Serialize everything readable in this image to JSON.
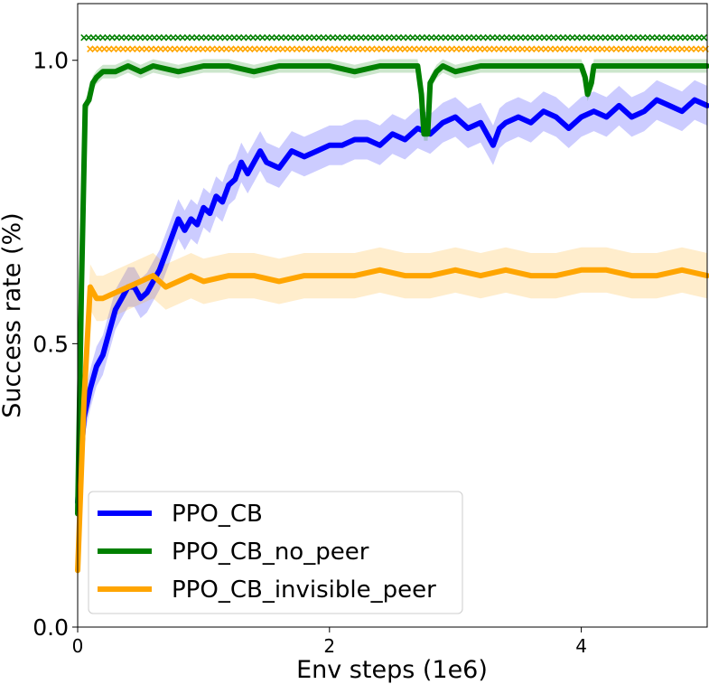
{
  "chart_data": {
    "type": "line",
    "title": "",
    "xlabel": "Env steps (1e6)",
    "ylabel": "Success rate (%)",
    "xlim": [
      0,
      5
    ],
    "ylim": [
      0,
      1.1
    ],
    "xticks": [
      0,
      2,
      4
    ],
    "xtick_labels": [
      "0",
      "2",
      "4"
    ],
    "yticks": [
      0.0,
      0.5,
      1.0
    ],
    "ytick_labels": [
      "0.0",
      "0.5",
      "1.0"
    ],
    "grid": false,
    "legend_position": "lower-left",
    "series": [
      {
        "name": "PPO_CB",
        "color": "#0000ff",
        "band_color": "#0000ff",
        "x": [
          0.0,
          0.05,
          0.1,
          0.15,
          0.2,
          0.25,
          0.3,
          0.35,
          0.4,
          0.45,
          0.5,
          0.55,
          0.6,
          0.65,
          0.7,
          0.75,
          0.8,
          0.85,
          0.9,
          0.95,
          1.0,
          1.05,
          1.1,
          1.15,
          1.2,
          1.25,
          1.3,
          1.35,
          1.4,
          1.45,
          1.5,
          1.6,
          1.7,
          1.8,
          1.9,
          2.0,
          2.1,
          2.2,
          2.3,
          2.4,
          2.5,
          2.6,
          2.7,
          2.8,
          2.9,
          3.0,
          3.1,
          3.2,
          3.3,
          3.35,
          3.4,
          3.5,
          3.6,
          3.7,
          3.8,
          3.9,
          4.0,
          4.1,
          4.2,
          4.3,
          4.4,
          4.5,
          4.6,
          4.7,
          4.8,
          4.9,
          5.0
        ],
        "values": [
          0.22,
          0.37,
          0.42,
          0.46,
          0.48,
          0.52,
          0.56,
          0.58,
          0.6,
          0.6,
          0.58,
          0.59,
          0.61,
          0.63,
          0.66,
          0.69,
          0.72,
          0.7,
          0.72,
          0.71,
          0.74,
          0.73,
          0.76,
          0.75,
          0.78,
          0.79,
          0.82,
          0.8,
          0.82,
          0.84,
          0.82,
          0.81,
          0.84,
          0.83,
          0.84,
          0.85,
          0.85,
          0.86,
          0.86,
          0.85,
          0.87,
          0.86,
          0.88,
          0.87,
          0.89,
          0.9,
          0.88,
          0.89,
          0.85,
          0.88,
          0.89,
          0.9,
          0.89,
          0.91,
          0.9,
          0.88,
          0.9,
          0.91,
          0.9,
          0.92,
          0.9,
          0.91,
          0.93,
          0.92,
          0.91,
          0.93,
          0.92
        ],
        "spread": 0.035
      },
      {
        "name": "PPO_CB_no_peer",
        "color": "#008000",
        "band_color": "#008000",
        "x": [
          0.0,
          0.03,
          0.06,
          0.09,
          0.12,
          0.15,
          0.2,
          0.3,
          0.4,
          0.5,
          0.6,
          0.8,
          1.0,
          1.2,
          1.4,
          1.6,
          1.8,
          2.0,
          2.2,
          2.4,
          2.6,
          2.7,
          2.73,
          2.75,
          2.78,
          2.8,
          2.85,
          2.9,
          3.0,
          3.2,
          3.4,
          3.6,
          3.8,
          4.0,
          4.03,
          4.05,
          4.08,
          4.1,
          4.3,
          4.5,
          4.7,
          4.9,
          5.0
        ],
        "values": [
          0.2,
          0.6,
          0.92,
          0.93,
          0.96,
          0.97,
          0.98,
          0.98,
          0.99,
          0.98,
          0.99,
          0.98,
          0.99,
          0.99,
          0.98,
          0.99,
          0.99,
          0.99,
          0.98,
          0.99,
          0.99,
          0.99,
          0.94,
          0.87,
          0.87,
          0.96,
          0.98,
          0.99,
          0.98,
          0.99,
          0.99,
          0.99,
          0.99,
          0.99,
          0.97,
          0.94,
          0.96,
          0.99,
          0.99,
          0.99,
          0.99,
          0.99,
          0.99
        ],
        "spread": 0.012
      },
      {
        "name": "PPO_CB_invisible_peer",
        "color": "#ffa500",
        "band_color": "#ffa500",
        "x": [
          0.0,
          0.05,
          0.1,
          0.15,
          0.2,
          0.3,
          0.4,
          0.5,
          0.6,
          0.7,
          0.8,
          0.9,
          1.0,
          1.2,
          1.4,
          1.6,
          1.8,
          2.0,
          2.2,
          2.4,
          2.6,
          2.8,
          3.0,
          3.2,
          3.4,
          3.6,
          3.8,
          4.0,
          4.2,
          4.4,
          4.6,
          4.8,
          5.0
        ],
        "values": [
          0.1,
          0.4,
          0.6,
          0.58,
          0.58,
          0.59,
          0.6,
          0.61,
          0.62,
          0.6,
          0.61,
          0.62,
          0.61,
          0.62,
          0.62,
          0.61,
          0.62,
          0.62,
          0.62,
          0.63,
          0.62,
          0.62,
          0.63,
          0.62,
          0.63,
          0.62,
          0.62,
          0.63,
          0.63,
          0.62,
          0.62,
          0.63,
          0.62
        ],
        "spread": 0.04
      }
    ],
    "markers": [
      {
        "series": "PPO_CB_no_peer",
        "symbol": "x",
        "y": 1.04,
        "x_start": 0.05,
        "x_end": 5.0
      },
      {
        "series": "PPO_CB_invisible_peer",
        "symbol": "x",
        "y": 1.02,
        "x_start": 0.1,
        "x_end": 5.0
      }
    ]
  }
}
